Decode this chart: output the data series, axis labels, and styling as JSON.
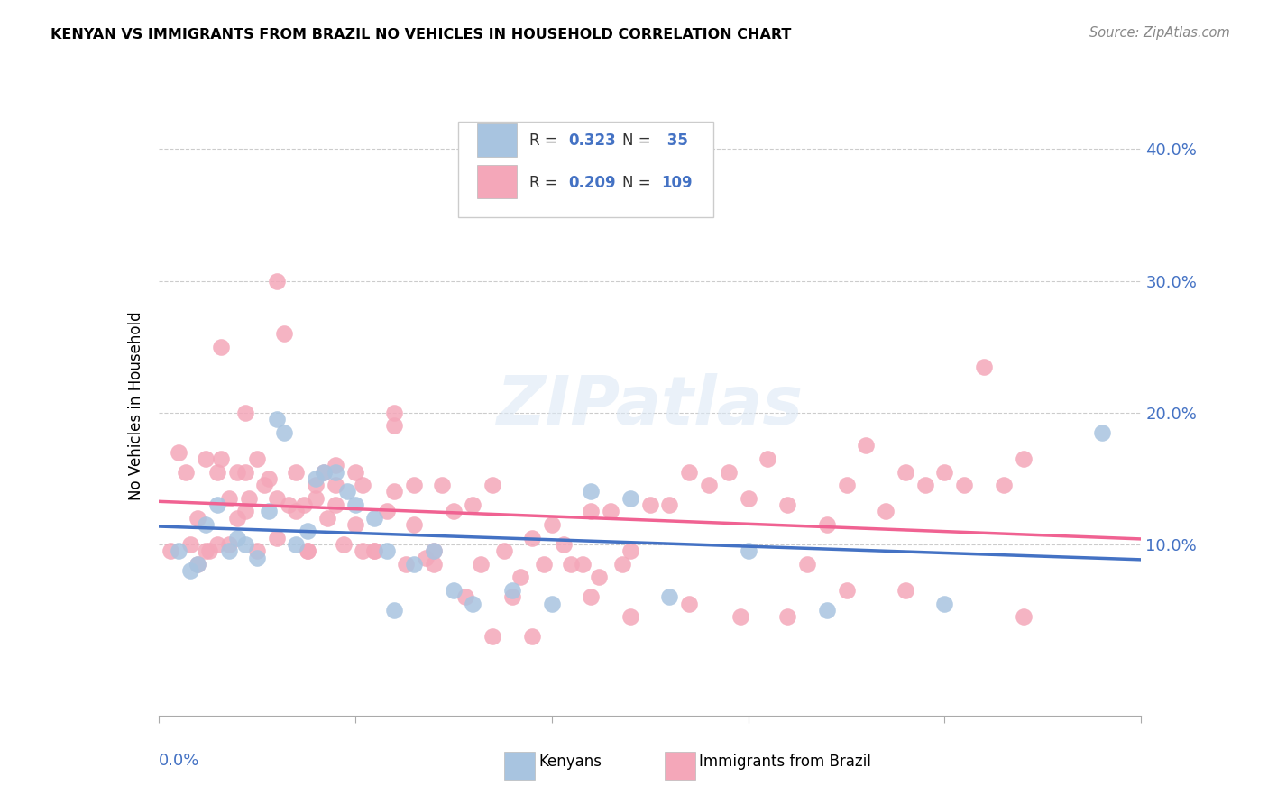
{
  "title": "KENYAN VS IMMIGRANTS FROM BRAZIL NO VEHICLES IN HOUSEHOLD CORRELATION CHART",
  "source": "Source: ZipAtlas.com",
  "ylabel": "No Vehicles in Household",
  "yticks": [
    "10.0%",
    "20.0%",
    "30.0%",
    "40.0%"
  ],
  "ytick_vals": [
    0.1,
    0.2,
    0.3,
    0.4
  ],
  "xlim": [
    0.0,
    0.25
  ],
  "ylim": [
    -0.03,
    0.44
  ],
  "kenyan_R": 0.323,
  "kenyan_N": 35,
  "brazil_R": 0.209,
  "brazil_N": 109,
  "kenyan_color": "#a8c4e0",
  "brazil_color": "#f4a7b9",
  "kenyan_line_color": "#4472c4",
  "brazil_line_color": "#f06292",
  "legend_text_color": "#4472c4",
  "kenyan_x": [
    0.005,
    0.008,
    0.01,
    0.012,
    0.015,
    0.018,
    0.02,
    0.022,
    0.025,
    0.028,
    0.03,
    0.032,
    0.035,
    0.038,
    0.04,
    0.042,
    0.045,
    0.048,
    0.05,
    0.055,
    0.058,
    0.06,
    0.065,
    0.07,
    0.075,
    0.08,
    0.09,
    0.1,
    0.11,
    0.12,
    0.13,
    0.15,
    0.17,
    0.2,
    0.24
  ],
  "kenyan_y": [
    0.095,
    0.08,
    0.085,
    0.115,
    0.13,
    0.095,
    0.105,
    0.1,
    0.09,
    0.125,
    0.195,
    0.185,
    0.1,
    0.11,
    0.15,
    0.155,
    0.155,
    0.14,
    0.13,
    0.12,
    0.095,
    0.05,
    0.085,
    0.095,
    0.065,
    0.055,
    0.065,
    0.055,
    0.14,
    0.135,
    0.06,
    0.095,
    0.05,
    0.055,
    0.185
  ],
  "brazil_x": [
    0.003,
    0.005,
    0.007,
    0.008,
    0.01,
    0.01,
    0.012,
    0.013,
    0.015,
    0.015,
    0.016,
    0.018,
    0.018,
    0.02,
    0.02,
    0.022,
    0.022,
    0.023,
    0.025,
    0.025,
    0.027,
    0.028,
    0.03,
    0.03,
    0.032,
    0.033,
    0.035,
    0.035,
    0.037,
    0.038,
    0.04,
    0.04,
    0.042,
    0.043,
    0.045,
    0.045,
    0.047,
    0.05,
    0.05,
    0.052,
    0.055,
    0.055,
    0.058,
    0.06,
    0.06,
    0.063,
    0.065,
    0.065,
    0.068,
    0.07,
    0.072,
    0.075,
    0.078,
    0.08,
    0.082,
    0.085,
    0.088,
    0.09,
    0.092,
    0.095,
    0.098,
    0.1,
    0.103,
    0.105,
    0.108,
    0.11,
    0.112,
    0.115,
    0.118,
    0.12,
    0.125,
    0.13,
    0.135,
    0.14,
    0.145,
    0.15,
    0.155,
    0.16,
    0.165,
    0.17,
    0.175,
    0.18,
    0.185,
    0.19,
    0.195,
    0.2,
    0.205,
    0.21,
    0.215,
    0.22,
    0.012,
    0.016,
    0.022,
    0.03,
    0.038,
    0.045,
    0.052,
    0.06,
    0.07,
    0.085,
    0.095,
    0.11,
    0.12,
    0.135,
    0.148,
    0.16,
    0.175,
    0.19,
    0.22
  ],
  "brazil_y": [
    0.095,
    0.17,
    0.155,
    0.1,
    0.12,
    0.085,
    0.165,
    0.095,
    0.155,
    0.1,
    0.165,
    0.135,
    0.1,
    0.155,
    0.12,
    0.155,
    0.125,
    0.135,
    0.165,
    0.095,
    0.145,
    0.15,
    0.135,
    0.105,
    0.26,
    0.13,
    0.155,
    0.125,
    0.13,
    0.095,
    0.145,
    0.135,
    0.155,
    0.12,
    0.16,
    0.145,
    0.1,
    0.155,
    0.115,
    0.145,
    0.095,
    0.095,
    0.125,
    0.19,
    0.14,
    0.085,
    0.115,
    0.145,
    0.09,
    0.095,
    0.145,
    0.125,
    0.06,
    0.13,
    0.085,
    0.145,
    0.095,
    0.06,
    0.075,
    0.105,
    0.085,
    0.115,
    0.1,
    0.085,
    0.085,
    0.125,
    0.075,
    0.125,
    0.085,
    0.095,
    0.13,
    0.13,
    0.155,
    0.145,
    0.155,
    0.135,
    0.165,
    0.13,
    0.085,
    0.115,
    0.145,
    0.175,
    0.125,
    0.155,
    0.145,
    0.155,
    0.145,
    0.235,
    0.145,
    0.165,
    0.095,
    0.25,
    0.2,
    0.3,
    0.095,
    0.13,
    0.095,
    0.2,
    0.085,
    0.03,
    0.03,
    0.06,
    0.045,
    0.055,
    0.045,
    0.045,
    0.065,
    0.065,
    0.045
  ]
}
